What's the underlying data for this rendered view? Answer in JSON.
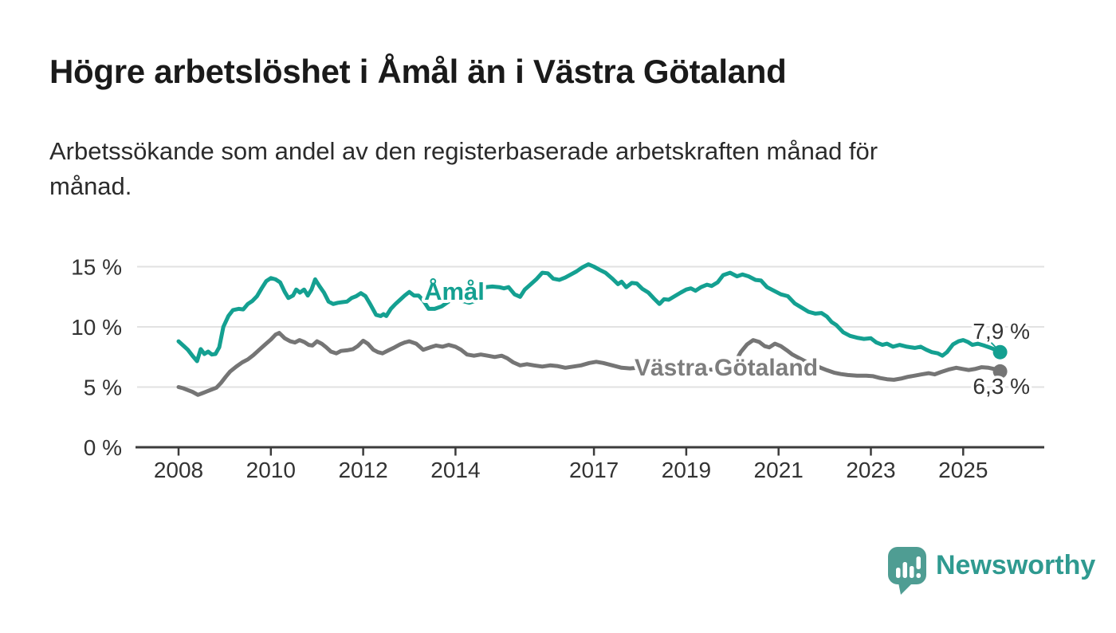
{
  "title": "Högre arbetslöshet i Åmål än i Västra Götaland",
  "subtitle": "Arbetssökande som andel av den registerbaserade arbetskraften månad för månad.",
  "footer": {
    "brand": "Newsworthy"
  },
  "colors": {
    "amal_line": "#14a091",
    "vg_line": "#757575",
    "vg_label": "#7d7d7d",
    "grid": "#e2e2e2",
    "axis": "#3b3b3b",
    "tick_text": "#333333",
    "logo_bubble": "#4f9d93",
    "logo_word": "#2f9a90"
  },
  "chart_data": {
    "type": "line",
    "unit": "%",
    "grid": "horizontal",
    "legend": "inline-labels",
    "x_axis": {
      "tick_values": [
        2008,
        2010,
        2012,
        2014,
        2017,
        2019,
        2021,
        2023,
        2025
      ],
      "tick_labels": [
        "2008",
        "2010",
        "2012",
        "2014",
        "2017",
        "2019",
        "2021",
        "2023",
        "2025"
      ],
      "min": 2008.0,
      "max": 2025.8
    },
    "y_axis": {
      "tick_values": [
        0,
        5,
        10,
        15
      ],
      "tick_labels": [
        "0 %",
        "5 %",
        "10 %",
        "15 %"
      ],
      "min": 0,
      "max": 15
    },
    "series": [
      {
        "name": "Åmål",
        "color": "#14a091",
        "label_color": "#14a091",
        "end_label": "7,9 %",
        "end_value": 7.9,
        "points": [
          [
            2008.0,
            8.8
          ],
          [
            2008.1,
            8.45
          ],
          [
            2008.2,
            8.1
          ],
          [
            2008.3,
            7.6
          ],
          [
            2008.4,
            7.15
          ],
          [
            2008.48,
            8.15
          ],
          [
            2008.56,
            7.75
          ],
          [
            2008.64,
            7.95
          ],
          [
            2008.72,
            7.7
          ],
          [
            2008.8,
            7.75
          ],
          [
            2008.88,
            8.3
          ],
          [
            2008.97,
            10.0
          ],
          [
            2009.08,
            10.9
          ],
          [
            2009.18,
            11.4
          ],
          [
            2009.3,
            11.5
          ],
          [
            2009.4,
            11.45
          ],
          [
            2009.5,
            11.9
          ],
          [
            2009.6,
            12.15
          ],
          [
            2009.7,
            12.55
          ],
          [
            2009.8,
            13.2
          ],
          [
            2009.9,
            13.8
          ],
          [
            2010.0,
            14.05
          ],
          [
            2010.1,
            13.95
          ],
          [
            2010.2,
            13.7
          ],
          [
            2010.3,
            12.9
          ],
          [
            2010.38,
            12.4
          ],
          [
            2010.48,
            12.6
          ],
          [
            2010.55,
            13.1
          ],
          [
            2010.63,
            12.85
          ],
          [
            2010.72,
            13.1
          ],
          [
            2010.8,
            12.6
          ],
          [
            2010.88,
            13.1
          ],
          [
            2010.96,
            13.95
          ],
          [
            2011.05,
            13.4
          ],
          [
            2011.15,
            12.85
          ],
          [
            2011.25,
            12.1
          ],
          [
            2011.35,
            11.9
          ],
          [
            2011.45,
            12.0
          ],
          [
            2011.55,
            12.05
          ],
          [
            2011.65,
            12.1
          ],
          [
            2011.75,
            12.4
          ],
          [
            2011.85,
            12.55
          ],
          [
            2011.95,
            12.8
          ],
          [
            2012.05,
            12.55
          ],
          [
            2012.15,
            11.9
          ],
          [
            2012.28,
            11.0
          ],
          [
            2012.38,
            10.9
          ],
          [
            2012.44,
            11.05
          ],
          [
            2012.5,
            10.9
          ],
          [
            2012.6,
            11.5
          ],
          [
            2012.7,
            11.9
          ],
          [
            2012.8,
            12.25
          ],
          [
            2012.9,
            12.6
          ],
          [
            2013.0,
            12.9
          ],
          [
            2013.1,
            12.6
          ],
          [
            2013.2,
            12.6
          ],
          [
            2013.3,
            12.2
          ],
          [
            2013.42,
            11.5
          ],
          [
            2013.55,
            11.5
          ],
          [
            2013.7,
            11.7
          ],
          [
            2013.85,
            12.1
          ],
          [
            2014.0,
            12.4
          ],
          [
            2014.15,
            12.15
          ],
          [
            2014.3,
            12.0
          ],
          [
            2014.45,
            12.2
          ],
          [
            2014.55,
            12.8
          ],
          [
            2014.65,
            13.3
          ],
          [
            2014.8,
            13.35
          ],
          [
            2014.95,
            13.3
          ],
          [
            2015.05,
            13.2
          ],
          [
            2015.15,
            13.3
          ],
          [
            2015.28,
            12.7
          ],
          [
            2015.4,
            12.5
          ],
          [
            2015.5,
            13.1
          ],
          [
            2015.62,
            13.5
          ],
          [
            2015.75,
            13.95
          ],
          [
            2015.88,
            14.5
          ],
          [
            2016.0,
            14.45
          ],
          [
            2016.12,
            14.0
          ],
          [
            2016.25,
            13.9
          ],
          [
            2016.38,
            14.1
          ],
          [
            2016.5,
            14.35
          ],
          [
            2016.62,
            14.6
          ],
          [
            2016.75,
            14.95
          ],
          [
            2016.88,
            15.2
          ],
          [
            2017.0,
            15.0
          ],
          [
            2017.12,
            14.75
          ],
          [
            2017.25,
            14.5
          ],
          [
            2017.4,
            14.0
          ],
          [
            2017.52,
            13.55
          ],
          [
            2017.6,
            13.75
          ],
          [
            2017.7,
            13.3
          ],
          [
            2017.82,
            13.65
          ],
          [
            2017.93,
            13.6
          ],
          [
            2018.05,
            13.15
          ],
          [
            2018.18,
            12.85
          ],
          [
            2018.3,
            12.35
          ],
          [
            2018.42,
            11.9
          ],
          [
            2018.52,
            12.3
          ],
          [
            2018.62,
            12.25
          ],
          [
            2018.75,
            12.55
          ],
          [
            2018.88,
            12.85
          ],
          [
            2019.0,
            13.1
          ],
          [
            2019.1,
            13.2
          ],
          [
            2019.2,
            13.0
          ],
          [
            2019.32,
            13.3
          ],
          [
            2019.45,
            13.5
          ],
          [
            2019.55,
            13.4
          ],
          [
            2019.68,
            13.7
          ],
          [
            2019.8,
            14.3
          ],
          [
            2019.95,
            14.5
          ],
          [
            2020.1,
            14.2
          ],
          [
            2020.22,
            14.35
          ],
          [
            2020.35,
            14.2
          ],
          [
            2020.5,
            13.9
          ],
          [
            2020.62,
            13.85
          ],
          [
            2020.75,
            13.3
          ],
          [
            2020.9,
            13.0
          ],
          [
            2021.05,
            12.7
          ],
          [
            2021.2,
            12.55
          ],
          [
            2021.35,
            11.95
          ],
          [
            2021.5,
            11.6
          ],
          [
            2021.65,
            11.25
          ],
          [
            2021.8,
            11.1
          ],
          [
            2021.93,
            11.15
          ],
          [
            2022.05,
            10.85
          ],
          [
            2022.15,
            10.4
          ],
          [
            2022.25,
            10.15
          ],
          [
            2022.4,
            9.55
          ],
          [
            2022.55,
            9.25
          ],
          [
            2022.7,
            9.1
          ],
          [
            2022.85,
            9.0
          ],
          [
            2023.0,
            9.05
          ],
          [
            2023.12,
            8.7
          ],
          [
            2023.25,
            8.5
          ],
          [
            2023.35,
            8.6
          ],
          [
            2023.48,
            8.35
          ],
          [
            2023.62,
            8.5
          ],
          [
            2023.78,
            8.35
          ],
          [
            2023.95,
            8.25
          ],
          [
            2024.08,
            8.35
          ],
          [
            2024.2,
            8.1
          ],
          [
            2024.32,
            7.9
          ],
          [
            2024.45,
            7.8
          ],
          [
            2024.55,
            7.6
          ],
          [
            2024.65,
            7.9
          ],
          [
            2024.78,
            8.55
          ],
          [
            2024.9,
            8.8
          ],
          [
            2025.0,
            8.9
          ],
          [
            2025.1,
            8.75
          ],
          [
            2025.2,
            8.5
          ],
          [
            2025.32,
            8.6
          ],
          [
            2025.45,
            8.45
          ],
          [
            2025.6,
            8.25
          ],
          [
            2025.7,
            8.1
          ],
          [
            2025.8,
            7.9
          ]
        ]
      },
      {
        "name": "Västra Götaland",
        "color": "#757575",
        "label_color": "#7d7d7d",
        "end_label": "6,3 %",
        "end_value": 6.3,
        "points": [
          [
            2008.0,
            5.0
          ],
          [
            2008.1,
            4.9
          ],
          [
            2008.2,
            4.75
          ],
          [
            2008.3,
            4.6
          ],
          [
            2008.42,
            4.35
          ],
          [
            2008.52,
            4.5
          ],
          [
            2008.62,
            4.65
          ],
          [
            2008.72,
            4.8
          ],
          [
            2008.82,
            4.95
          ],
          [
            2008.92,
            5.35
          ],
          [
            2009.02,
            5.85
          ],
          [
            2009.12,
            6.3
          ],
          [
            2009.25,
            6.7
          ],
          [
            2009.38,
            7.05
          ],
          [
            2009.5,
            7.3
          ],
          [
            2009.62,
            7.65
          ],
          [
            2009.75,
            8.1
          ],
          [
            2009.88,
            8.55
          ],
          [
            2010.0,
            8.95
          ],
          [
            2010.1,
            9.35
          ],
          [
            2010.18,
            9.5
          ],
          [
            2010.3,
            9.05
          ],
          [
            2010.42,
            8.8
          ],
          [
            2010.52,
            8.7
          ],
          [
            2010.62,
            8.9
          ],
          [
            2010.72,
            8.75
          ],
          [
            2010.82,
            8.5
          ],
          [
            2010.9,
            8.45
          ],
          [
            2011.0,
            8.8
          ],
          [
            2011.1,
            8.6
          ],
          [
            2011.2,
            8.3
          ],
          [
            2011.3,
            7.95
          ],
          [
            2011.42,
            7.8
          ],
          [
            2011.52,
            8.0
          ],
          [
            2011.65,
            8.05
          ],
          [
            2011.78,
            8.15
          ],
          [
            2011.88,
            8.4
          ],
          [
            2012.0,
            8.85
          ],
          [
            2012.1,
            8.6
          ],
          [
            2012.22,
            8.1
          ],
          [
            2012.32,
            7.9
          ],
          [
            2012.42,
            7.8
          ],
          [
            2012.55,
            8.05
          ],
          [
            2012.68,
            8.3
          ],
          [
            2012.8,
            8.55
          ],
          [
            2012.9,
            8.7
          ],
          [
            2013.0,
            8.8
          ],
          [
            2013.15,
            8.6
          ],
          [
            2013.3,
            8.1
          ],
          [
            2013.45,
            8.3
          ],
          [
            2013.58,
            8.45
          ],
          [
            2013.72,
            8.35
          ],
          [
            2013.85,
            8.5
          ],
          [
            2014.0,
            8.35
          ],
          [
            2014.12,
            8.1
          ],
          [
            2014.25,
            7.7
          ],
          [
            2014.4,
            7.6
          ],
          [
            2014.55,
            7.7
          ],
          [
            2014.7,
            7.6
          ],
          [
            2014.85,
            7.5
          ],
          [
            2015.0,
            7.6
          ],
          [
            2015.12,
            7.4
          ],
          [
            2015.25,
            7.05
          ],
          [
            2015.4,
            6.8
          ],
          [
            2015.55,
            6.9
          ],
          [
            2015.7,
            6.8
          ],
          [
            2015.88,
            6.7
          ],
          [
            2016.05,
            6.8
          ],
          [
            2016.2,
            6.75
          ],
          [
            2016.38,
            6.6
          ],
          [
            2016.55,
            6.7
          ],
          [
            2016.72,
            6.8
          ],
          [
            2016.9,
            7.0
          ],
          [
            2017.05,
            7.1
          ],
          [
            2017.2,
            7.0
          ],
          [
            2017.4,
            6.8
          ],
          [
            2017.6,
            6.6
          ],
          [
            2017.78,
            6.55
          ],
          [
            2017.95,
            6.6
          ],
          [
            2018.15,
            6.5
          ],
          [
            2018.35,
            6.42
          ],
          [
            2018.55,
            6.48
          ],
          [
            2018.75,
            6.42
          ],
          [
            2018.95,
            6.38
          ],
          [
            2019.15,
            6.42
          ],
          [
            2019.35,
            6.4
          ],
          [
            2019.55,
            6.45
          ],
          [
            2019.75,
            6.5
          ],
          [
            2019.9,
            6.6
          ],
          [
            2020.05,
            7.0
          ],
          [
            2020.18,
            7.9
          ],
          [
            2020.32,
            8.55
          ],
          [
            2020.45,
            8.9
          ],
          [
            2020.58,
            8.75
          ],
          [
            2020.7,
            8.4
          ],
          [
            2020.8,
            8.3
          ],
          [
            2020.92,
            8.6
          ],
          [
            2021.05,
            8.4
          ],
          [
            2021.18,
            8.05
          ],
          [
            2021.3,
            7.7
          ],
          [
            2021.45,
            7.4
          ],
          [
            2021.6,
            7.1
          ],
          [
            2021.75,
            6.9
          ],
          [
            2021.9,
            6.62
          ],
          [
            2022.05,
            6.4
          ],
          [
            2022.2,
            6.2
          ],
          [
            2022.35,
            6.08
          ],
          [
            2022.5,
            6.0
          ],
          [
            2022.7,
            5.95
          ],
          [
            2022.9,
            5.95
          ],
          [
            2023.05,
            5.9
          ],
          [
            2023.2,
            5.75
          ],
          [
            2023.35,
            5.65
          ],
          [
            2023.5,
            5.6
          ],
          [
            2023.65,
            5.7
          ],
          [
            2023.8,
            5.85
          ],
          [
            2023.95,
            5.95
          ],
          [
            2024.1,
            6.05
          ],
          [
            2024.25,
            6.15
          ],
          [
            2024.38,
            6.05
          ],
          [
            2024.52,
            6.25
          ],
          [
            2024.68,
            6.45
          ],
          [
            2024.85,
            6.6
          ],
          [
            2025.0,
            6.5
          ],
          [
            2025.12,
            6.42
          ],
          [
            2025.25,
            6.5
          ],
          [
            2025.4,
            6.65
          ],
          [
            2025.55,
            6.6
          ],
          [
            2025.68,
            6.5
          ],
          [
            2025.8,
            6.3
          ]
        ]
      }
    ]
  }
}
